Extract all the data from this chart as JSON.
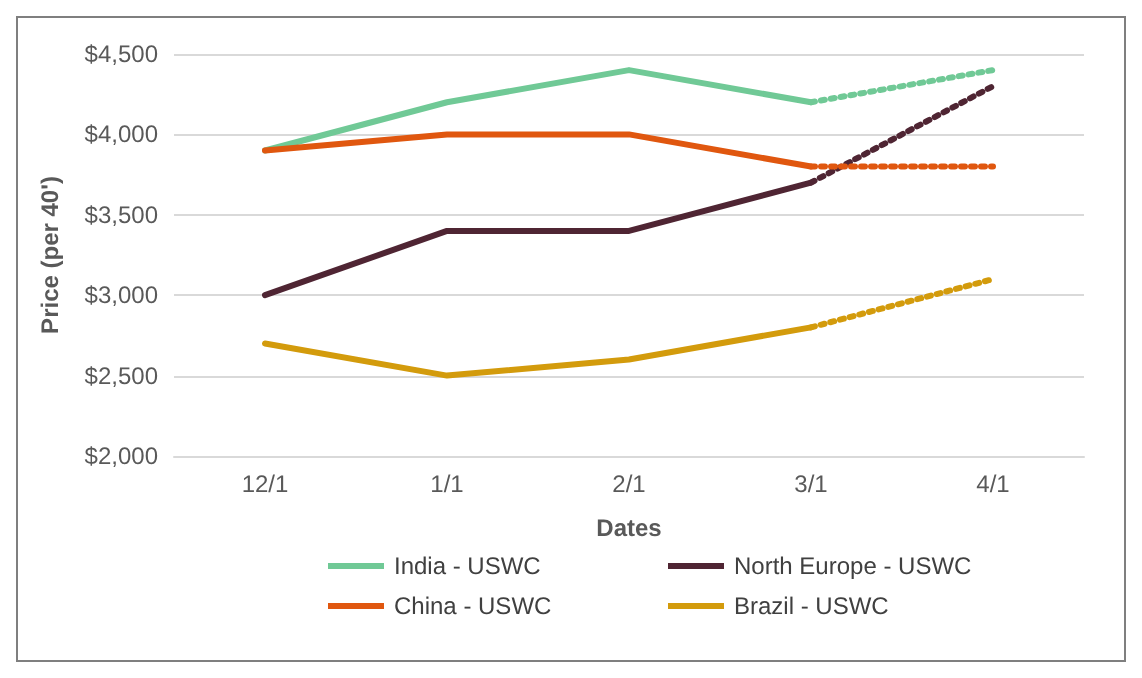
{
  "chart_data": {
    "type": "line",
    "xlabel": "Dates",
    "ylabel": "Price (per 40')",
    "categories": [
      "12/1",
      "1/1",
      "2/1",
      "3/1",
      "4/1"
    ],
    "series": [
      {
        "name": "India - USWC",
        "color": "#70c996",
        "values": [
          3900,
          4200,
          4400,
          4200,
          null
        ]
      },
      {
        "name": "North Europe - USWC",
        "color": "#4f2533",
        "values": [
          3000,
          3400,
          3400,
          3700,
          null
        ]
      },
      {
        "name": "China - USWC",
        "color": "#e0570f",
        "values": [
          3900,
          4000,
          4000,
          3800,
          null
        ]
      },
      {
        "name": "Brazil - USWC",
        "color": "#d39b0c",
        "values": [
          2700,
          2500,
          2600,
          2800,
          null
        ]
      },
      {
        "color": "#70c996",
        "line_style": "dotted",
        "values": [
          null,
          null,
          null,
          4200,
          4400
        ]
      },
      {
        "color": "#4f2533",
        "line_style": "dotted",
        "values": [
          null,
          null,
          null,
          3700,
          4300
        ]
      },
      {
        "color": "#e0570f",
        "line_style": "dotted",
        "values": [
          null,
          null,
          null,
          3800,
          3800
        ]
      },
      {
        "color": "#d39b0c",
        "line_style": "dotted",
        "values": [
          null,
          null,
          null,
          2800,
          3100
        ]
      }
    ],
    "ylim": [
      2000,
      4500
    ],
    "yticks": [
      {
        "value": 2000,
        "label": "$2,000"
      },
      {
        "value": 2500,
        "label": "$2,500"
      },
      {
        "value": 3000,
        "label": "$3,000"
      },
      {
        "value": 3500,
        "label": "$3,500"
      },
      {
        "value": 4000,
        "label": "$4,000"
      },
      {
        "value": 4500,
        "label": "$4,500"
      }
    ],
    "grid": "y",
    "legend": "bottom",
    "marker": "none",
    "line_style": "solid"
  }
}
